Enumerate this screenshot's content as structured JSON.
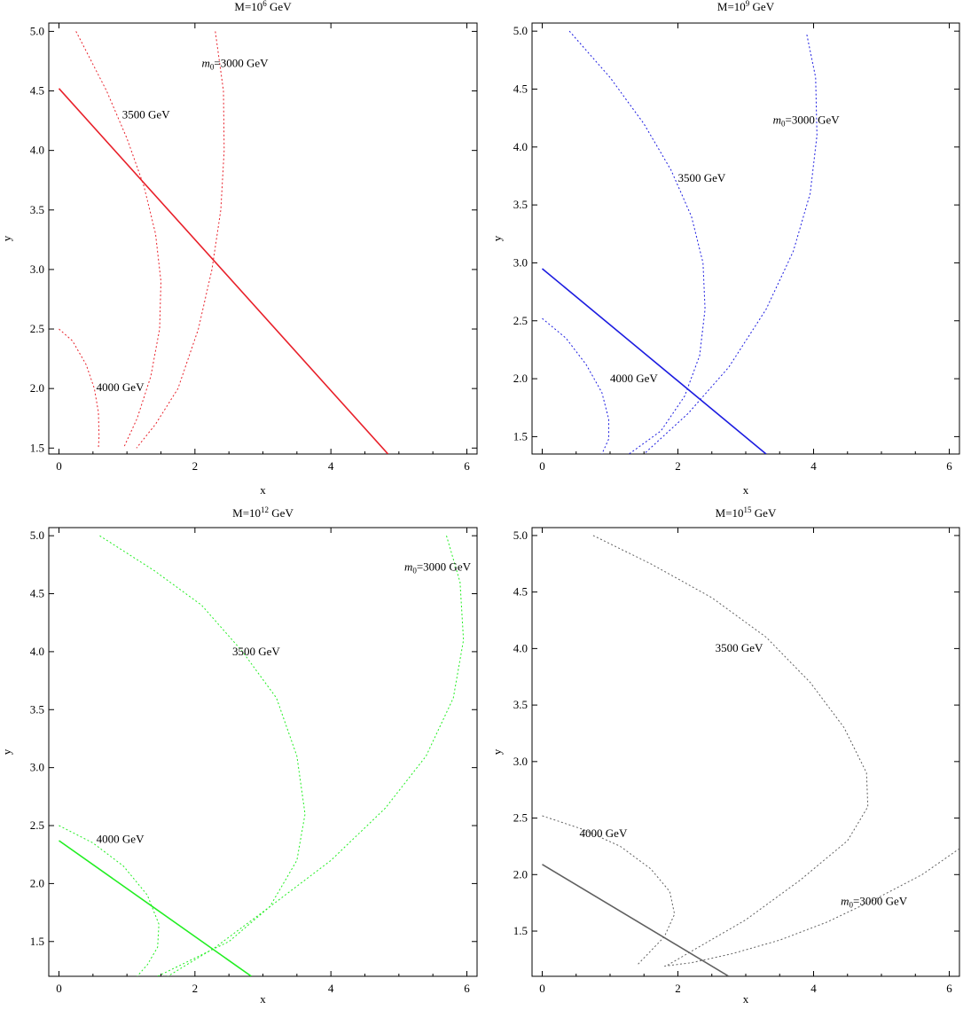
{
  "chart_data": [
    {
      "type": "line",
      "title": "M=10^6 GeV",
      "title_base": "M=10",
      "title_exp": "6",
      "title_unit": " GeV",
      "xlabel": "x",
      "ylabel": "y",
      "xlim": [
        -0.15,
        6.15
      ],
      "ylim": [
        1.45,
        5.07
      ],
      "xticks": [
        0,
        2,
        4,
        6
      ],
      "yticks": [
        1.5,
        2.0,
        2.5,
        3.0,
        3.5,
        4.0,
        4.5,
        5.0
      ],
      "ytick_labels": [
        "1.5",
        "2.0",
        "2.5",
        "3.0",
        "3.5",
        "4.0",
        "4.5",
        "5.0"
      ],
      "color": "#e8202a",
      "main_line": {
        "x": [
          0,
          4.84
        ],
        "y": [
          4.52,
          1.45
        ]
      },
      "contours": [
        {
          "label": "4000 GeV",
          "x": [
            0.0,
            0.2,
            0.4,
            0.52,
            0.58,
            0.59,
            0.58
          ],
          "y": [
            2.5,
            2.4,
            2.2,
            2.0,
            1.8,
            1.6,
            1.5
          ]
        },
        {
          "label": "3500 GeV",
          "x": [
            0.25,
            0.7,
            1.0,
            1.25,
            1.42,
            1.5,
            1.48,
            1.35,
            1.15,
            0.95
          ],
          "y": [
            5.0,
            4.5,
            4.1,
            3.7,
            3.3,
            2.9,
            2.5,
            2.1,
            1.75,
            1.5
          ]
        },
        {
          "label": "m0=3000 GeV",
          "label_italic": "m",
          "label_sub": "0",
          "label_rest": "=3000 GeV",
          "x": [
            2.3,
            2.42,
            2.43,
            2.38,
            2.25,
            2.05,
            1.75,
            1.42,
            1.14
          ],
          "y": [
            5.0,
            4.5,
            4.0,
            3.5,
            3.0,
            2.5,
            2.0,
            1.7,
            1.5
          ]
        }
      ],
      "contour_labels": [
        {
          "text": "4000 GeV",
          "x": 0.55,
          "y": 1.98
        },
        {
          "text": "3500 GeV",
          "x": 0.93,
          "y": 4.27
        },
        {
          "text": "=3000 GeV",
          "x": 2.1,
          "y": 4.7
        }
      ]
    },
    {
      "type": "line",
      "title": "M=10^9 GeV",
      "title_base": "M=10",
      "title_exp": "9",
      "title_unit": " GeV",
      "xlabel": "x",
      "ylabel": "y",
      "xlim": [
        -0.15,
        6.15
      ],
      "ylim": [
        1.35,
        5.07
      ],
      "xticks": [
        0,
        2,
        4,
        6
      ],
      "yticks": [
        1.5,
        2.0,
        2.5,
        3.0,
        3.5,
        4.0,
        4.5,
        5.0
      ],
      "ytick_labels": [
        "1.5",
        "2.0",
        "2.5",
        "3.0",
        "3.5",
        "4.0",
        "4.5",
        "5.0"
      ],
      "color": "#1c1ce0",
      "main_line": {
        "x": [
          0,
          3.3
        ],
        "y": [
          2.95,
          1.35
        ]
      },
      "contours": [
        {
          "label": "4000 GeV",
          "x": [
            0.0,
            0.35,
            0.65,
            0.88,
            0.98,
            0.98,
            0.88
          ],
          "y": [
            2.52,
            2.35,
            2.12,
            1.88,
            1.65,
            1.48,
            1.35
          ]
        },
        {
          "label": "3500 GeV",
          "x": [
            0.4,
            1.0,
            1.5,
            1.9,
            2.2,
            2.37,
            2.4,
            2.32,
            2.1,
            1.75,
            1.28
          ],
          "y": [
            5.0,
            4.6,
            4.2,
            3.8,
            3.4,
            3.0,
            2.6,
            2.2,
            1.85,
            1.55,
            1.35
          ]
        },
        {
          "label": "m0=3000 GeV",
          "label_italic": "m",
          "label_sub": "0",
          "label_rest": "=3000 GeV",
          "x": [
            3.9,
            4.03,
            4.05,
            3.95,
            3.7,
            3.3,
            2.75,
            2.15,
            1.5
          ],
          "y": [
            4.97,
            4.6,
            4.1,
            3.6,
            3.1,
            2.6,
            2.1,
            1.7,
            1.35
          ]
        }
      ],
      "contour_labels": [
        {
          "text": "4000 GeV",
          "x": 1.0,
          "y": 1.97
        },
        {
          "text": "3500 GeV",
          "x": 2.0,
          "y": 3.7
        },
        {
          "text": "=3000 GeV",
          "x": 3.4,
          "y": 4.2
        }
      ]
    },
    {
      "type": "line",
      "title": "M=10^12 GeV",
      "title_base": "M=10",
      "title_exp": "12",
      "title_unit": " GeV",
      "xlabel": "x",
      "ylabel": "y",
      "xlim": [
        -0.15,
        6.15
      ],
      "ylim": [
        1.2,
        5.07
      ],
      "xticks": [
        0,
        2,
        4,
        6
      ],
      "yticks": [
        1.5,
        2.0,
        2.5,
        3.0,
        3.5,
        4.0,
        4.5,
        5.0
      ],
      "ytick_labels": [
        "1.5",
        "2.0",
        "2.5",
        "3.0",
        "3.5",
        "4.0",
        "4.5",
        "5.0"
      ],
      "color": "#22ee22",
      "main_line": {
        "x": [
          0,
          2.83
        ],
        "y": [
          2.37,
          1.2
        ]
      },
      "contours": [
        {
          "label": "4000 GeV",
          "x": [
            0.0,
            0.5,
            0.95,
            1.3,
            1.47,
            1.45,
            1.3,
            1.15
          ],
          "y": [
            2.5,
            2.35,
            2.15,
            1.9,
            1.65,
            1.45,
            1.3,
            1.2
          ]
        },
        {
          "label": "3500 GeV",
          "x": [
            0.6,
            1.4,
            2.1,
            2.7,
            3.2,
            3.5,
            3.62,
            3.5,
            3.1,
            2.5,
            1.8,
            1.45
          ],
          "y": [
            5.0,
            4.7,
            4.4,
            4.0,
            3.6,
            3.1,
            2.6,
            2.2,
            1.8,
            1.5,
            1.3,
            1.2
          ]
        },
        {
          "label": "m0=3000 GeV",
          "label_italic": "m",
          "label_sub": "0",
          "label_rest": "=3000 GeV",
          "x": [
            5.7,
            5.9,
            5.95,
            5.8,
            5.4,
            4.8,
            4.0,
            3.1,
            2.3,
            1.6
          ],
          "y": [
            5.0,
            4.6,
            4.1,
            3.6,
            3.1,
            2.65,
            2.2,
            1.8,
            1.45,
            1.2
          ]
        }
      ],
      "contour_labels": [
        {
          "text": "4000 GeV",
          "x": 0.55,
          "y": 2.35
        },
        {
          "text": "3500 GeV",
          "x": 2.55,
          "y": 3.97
        },
        {
          "text": "=3000 GeV",
          "x": 5.08,
          "y": 4.7
        }
      ]
    },
    {
      "type": "line",
      "title": "M=10^15 GeV",
      "title_base": "M=10",
      "title_exp": "15",
      "title_unit": " GeV",
      "xlabel": "x",
      "ylabel": "y",
      "xlim": [
        -0.15,
        6.15
      ],
      "ylim": [
        1.1,
        5.07
      ],
      "xticks": [
        0,
        2,
        4,
        6
      ],
      "yticks": [
        1.5,
        2.0,
        2.5,
        3.0,
        3.5,
        4.0,
        4.5,
        5.0
      ],
      "ytick_labels": [
        "1.5",
        "2.0",
        "2.5",
        "3.0",
        "3.5",
        "4.0",
        "4.5",
        "5.0"
      ],
      "color": "#606060",
      "main_line": {
        "x": [
          0,
          2.75
        ],
        "y": [
          2.09,
          1.1
        ]
      },
      "contours": [
        {
          "label": "4000 GeV",
          "x": [
            0.0,
            0.6,
            1.15,
            1.6,
            1.88,
            1.95,
            1.8,
            1.4
          ],
          "y": [
            2.52,
            2.4,
            2.25,
            2.05,
            1.85,
            1.65,
            1.45,
            1.2
          ]
        },
        {
          "label": "3500 GeV",
          "x": [
            0.75,
            1.6,
            2.5,
            3.3,
            3.95,
            4.45,
            4.78,
            4.8,
            4.5,
            3.8,
            3.0,
            1.85
          ],
          "y": [
            5.0,
            4.75,
            4.45,
            4.1,
            3.7,
            3.3,
            2.9,
            2.6,
            2.3,
            1.95,
            1.6,
            1.2
          ]
        },
        {
          "label": "m0=3000 GeV",
          "label_italic": "m",
          "label_sub": "0",
          "label_rest": "=3000 GeV",
          "x": [
            6.15,
            5.6,
            4.9,
            4.2,
            3.5,
            2.8,
            2.2,
            1.8
          ],
          "y": [
            2.23,
            2.0,
            1.78,
            1.58,
            1.42,
            1.3,
            1.22,
            1.19
          ]
        }
      ],
      "contour_labels": [
        {
          "text": "4000 GeV",
          "x": 0.55,
          "y": 2.33
        },
        {
          "text": "3500 GeV",
          "x": 2.55,
          "y": 3.97
        },
        {
          "text": "=3000 GeV",
          "x": 4.4,
          "y": 1.73
        }
      ]
    }
  ]
}
